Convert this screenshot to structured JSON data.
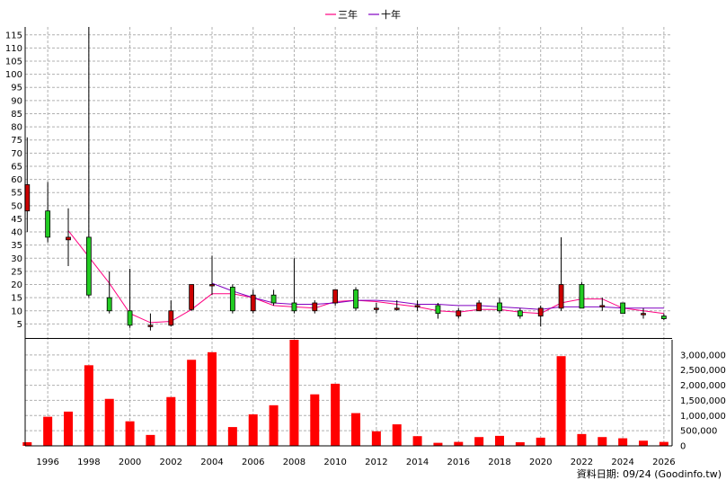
{
  "legend": [
    {
      "label": "三年",
      "color": "#ff0080"
    },
    {
      "label": "十年",
      "color": "#8000c0"
    }
  ],
  "footer": "資料日期: 09/24  (Goodinfo.tw)",
  "chart_data": [
    {
      "type": "candlestick",
      "ylim": [
        0,
        118
      ],
      "yticks": [
        5,
        10,
        15,
        20,
        25,
        30,
        35,
        40,
        45,
        50,
        55,
        60,
        65,
        70,
        75,
        80,
        85,
        90,
        95,
        100,
        105,
        110,
        115
      ],
      "xlim": [
        1994.9,
        2026.4
      ],
      "xticks": [
        1996,
        1998,
        2000,
        2002,
        2004,
        2006,
        2008,
        2010,
        2012,
        2014,
        2016,
        2018,
        2020,
        2022,
        2024,
        2026
      ],
      "grid": true,
      "colors": {
        "up": "#cc0000",
        "down": "#22cc22"
      },
      "candles": [
        {
          "year": 1995,
          "open": 48,
          "high": 76,
          "low": 40,
          "close": 58
        },
        {
          "year": 1996,
          "open": 48,
          "high": 59,
          "low": 36,
          "close": 38
        },
        {
          "year": 1997,
          "open": 37,
          "high": 49,
          "low": 27,
          "close": 38
        },
        {
          "year": 1998,
          "open": 38,
          "high": 118,
          "low": 15,
          "close": 16
        },
        {
          "year": 1999,
          "open": 15,
          "high": 25,
          "low": 9,
          "close": 10
        },
        {
          "year": 2000,
          "open": 10,
          "high": 26,
          "low": 3.5,
          "close": 4.5
        },
        {
          "year": 2001,
          "open": 4.5,
          "high": 9,
          "low": 2.5,
          "close": 4.5
        },
        {
          "year": 2002,
          "open": 4.5,
          "high": 14,
          "low": 4,
          "close": 10
        },
        {
          "year": 2003,
          "open": 10.5,
          "high": 20,
          "low": 10,
          "close": 20
        },
        {
          "year": 2004,
          "open": 20,
          "high": 31,
          "low": 16,
          "close": 20
        },
        {
          "year": 2005,
          "open": 19,
          "high": 20,
          "low": 9,
          "close": 10
        },
        {
          "year": 2006,
          "open": 10,
          "high": 18,
          "low": 9,
          "close": 16
        },
        {
          "year": 2007,
          "open": 16,
          "high": 18,
          "low": 12,
          "close": 13
        },
        {
          "year": 2008,
          "open": 13,
          "high": 30,
          "low": 9,
          "close": 10
        },
        {
          "year": 2009,
          "open": 10,
          "high": 14,
          "low": 9,
          "close": 13
        },
        {
          "year": 2010,
          "open": 13,
          "high": 18,
          "low": 12,
          "close": 18
        },
        {
          "year": 2011,
          "open": 18,
          "high": 19,
          "low": 10,
          "close": 11
        },
        {
          "year": 2012,
          "open": 11,
          "high": 13,
          "low": 9,
          "close": 11
        },
        {
          "year": 2013,
          "open": 11,
          "high": 14,
          "low": 10,
          "close": 11
        },
        {
          "year": 2014,
          "open": 12,
          "high": 14,
          "low": 10,
          "close": 12
        },
        {
          "year": 2015,
          "open": 12,
          "high": 13,
          "low": 7,
          "close": 9
        },
        {
          "year": 2016,
          "open": 8,
          "high": 11,
          "low": 7,
          "close": 10
        },
        {
          "year": 2017,
          "open": 10,
          "high": 14,
          "low": 10,
          "close": 13
        },
        {
          "year": 2018,
          "open": 13,
          "high": 15,
          "low": 9,
          "close": 10
        },
        {
          "year": 2019,
          "open": 10,
          "high": 11,
          "low": 7,
          "close": 8
        },
        {
          "year": 2020,
          "open": 8,
          "high": 12,
          "low": 4,
          "close": 11
        },
        {
          "year": 2021,
          "open": 11,
          "high": 38,
          "low": 10,
          "close": 20
        },
        {
          "year": 2022,
          "open": 20,
          "high": 21,
          "low": 11,
          "close": 11
        },
        {
          "year": 2023,
          "open": 12,
          "high": 15,
          "low": 10,
          "close": 12
        },
        {
          "year": 2024,
          "open": 13,
          "high": 13,
          "low": 9,
          "close": 9
        },
        {
          "year": 2025,
          "open": 9,
          "high": 11,
          "low": 7,
          "close": 9
        },
        {
          "year": 2026,
          "open": 8,
          "high": 9,
          "low": 6.5,
          "close": 7
        }
      ],
      "series": [
        {
          "name": "三年",
          "color": "#ff0080",
          "x": [
            1997,
            1998,
            1999,
            2000,
            2001,
            2002,
            2003,
            2004,
            2005,
            2006,
            2007,
            2008,
            2009,
            2010,
            2011,
            2012,
            2013,
            2014,
            2015,
            2016,
            2017,
            2018,
            2019,
            2020,
            2021,
            2022,
            2023,
            2024,
            2025,
            2026
          ],
          "values": [
            40.5,
            30.5,
            20.5,
            9,
            5.5,
            6,
            10.5,
            16.5,
            16.5,
            15,
            12,
            11.5,
            11,
            13.5,
            14,
            13.5,
            12.5,
            11.5,
            10,
            9.5,
            10.5,
            10.5,
            9.5,
            9,
            13,
            14.5,
            14.5,
            11,
            10,
            9
          ]
        },
        {
          "name": "十年",
          "color": "#8000c0",
          "x": [
            2004,
            2005,
            2006,
            2007,
            2008,
            2009,
            2010,
            2011,
            2012,
            2013,
            2014,
            2015,
            2016,
            2017,
            2018,
            2019,
            2020,
            2021,
            2022,
            2023,
            2024,
            2025,
            2026
          ],
          "values": [
            20.5,
            17.5,
            15,
            13,
            12.5,
            12.5,
            13,
            14,
            14,
            13.5,
            12.5,
            12.5,
            12,
            12,
            11.5,
            11,
            10.5,
            11.5,
            11.5,
            11.5,
            11,
            11,
            11
          ]
        }
      ]
    },
    {
      "type": "bar",
      "ylim": [
        0,
        3500000
      ],
      "yticks": [
        0,
        500000,
        1000000,
        1500000,
        2000000,
        2500000,
        3000000
      ],
      "ytick_labels": [
        "0",
        "500,000",
        "1,000,000",
        "1,500,000",
        "2,000,000",
        "2,500,000",
        "3,000,000"
      ],
      "color": "#ff0000",
      "x": [
        1995,
        1996,
        1997,
        1998,
        1999,
        2000,
        2001,
        2002,
        2003,
        2004,
        2005,
        2006,
        2007,
        2008,
        2009,
        2010,
        2011,
        2012,
        2013,
        2014,
        2015,
        2016,
        2017,
        2018,
        2019,
        2020,
        2021,
        2022,
        2023,
        2024,
        2025,
        2026
      ],
      "values": [
        120000,
        960000,
        1130000,
        2660000,
        1550000,
        810000,
        360000,
        1610000,
        2840000,
        3090000,
        620000,
        1040000,
        1340000,
        3500000,
        1700000,
        2050000,
        1080000,
        480000,
        710000,
        320000,
        100000,
        130000,
        290000,
        330000,
        120000,
        270000,
        2960000,
        390000,
        290000,
        250000,
        170000,
        130000
      ]
    }
  ]
}
